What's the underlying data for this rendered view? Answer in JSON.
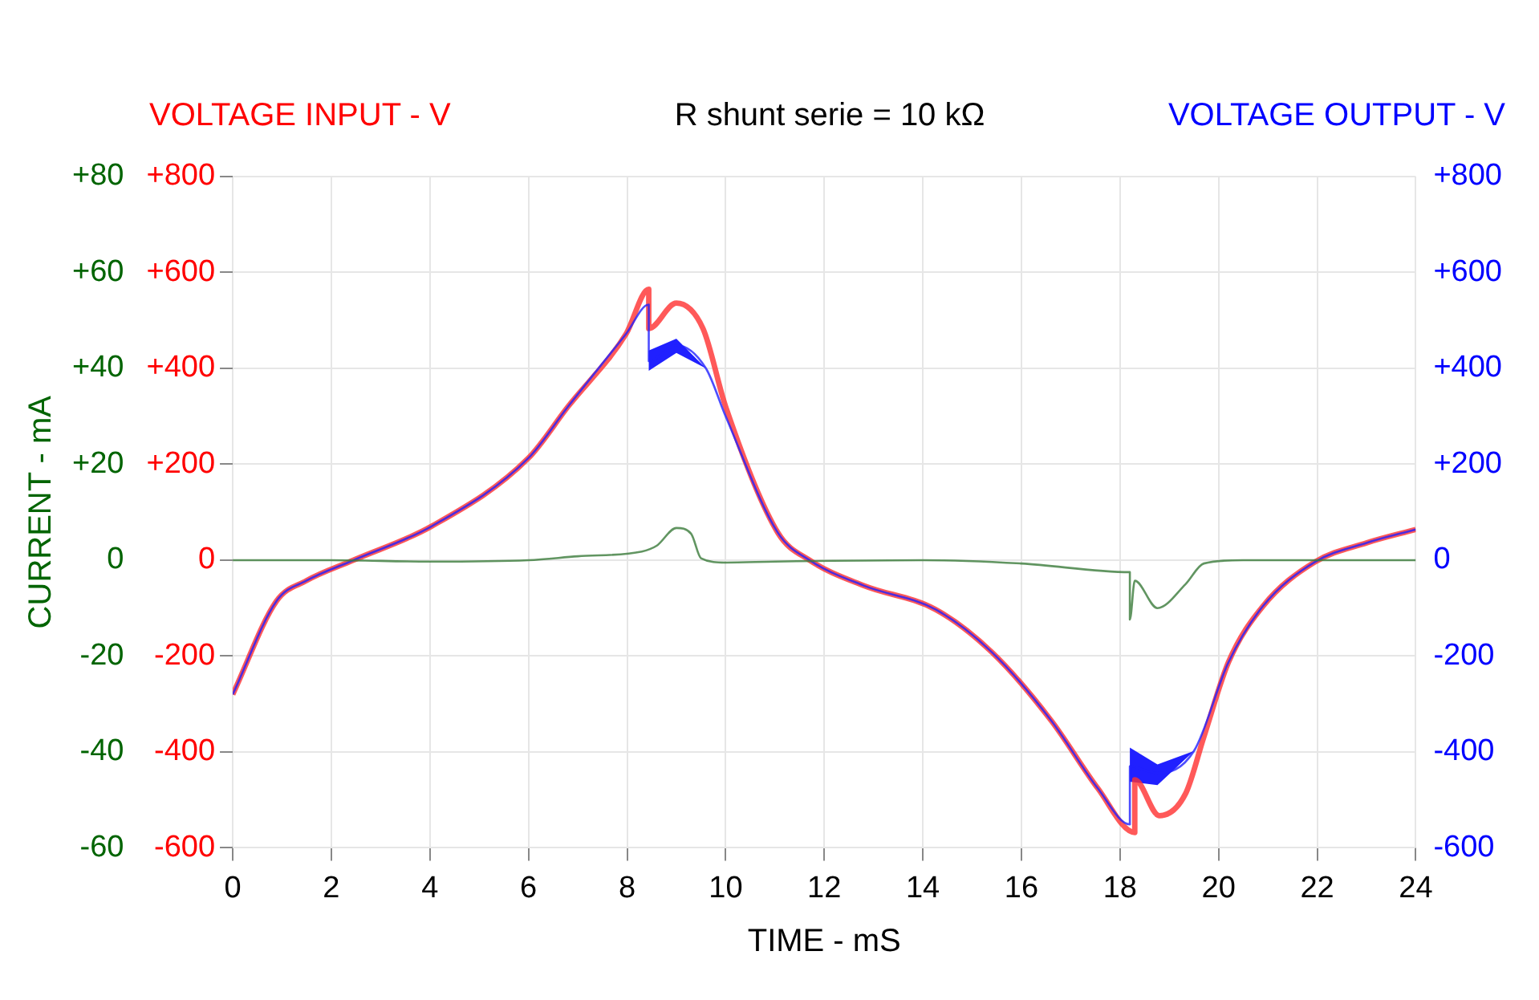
{
  "chart_data": {
    "type": "line",
    "title": "R shunt serie = 10 kΩ",
    "xlabel": "TIME - mS",
    "ylabel": "VOLTAGE INPUT - V",
    "y2label": "VOLTAGE OUTPUT - V",
    "y3label": "CURRENT - mA",
    "xlim": [
      0,
      24
    ],
    "xticks": [
      0,
      2,
      4,
      6,
      8,
      10,
      12,
      14,
      16,
      18,
      20,
      22,
      24
    ],
    "ylim": [
      -600,
      800
    ],
    "yticks": [
      {
        "value": 800,
        "label": "+800"
      },
      {
        "value": 600,
        "label": "+600"
      },
      {
        "value": 400,
        "label": "+400"
      },
      {
        "value": 200,
        "label": "+200"
      },
      0,
      -200,
      -400,
      -600
    ],
    "y2lim": [
      -600,
      800
    ],
    "y2ticks": [
      {
        "value": 800,
        "label": "+800"
      },
      {
        "value": 600,
        "label": "+600"
      },
      {
        "value": 400,
        "label": "+400"
      },
      {
        "value": 200,
        "label": "+200"
      },
      0,
      -200,
      -400,
      -600
    ],
    "y3lim": [
      -60,
      80
    ],
    "y3ticks": [
      {
        "value": 80,
        "label": "+80"
      },
      {
        "value": 60,
        "label": "+60"
      },
      {
        "value": 40,
        "label": "+40"
      },
      {
        "value": 20,
        "label": "+20"
      },
      0,
      -20,
      -40,
      -60
    ],
    "grid": true,
    "legend": false,
    "marker": "none",
    "line_style": "solid",
    "series": [
      {
        "color": "#ff3030",
        "axis": "y",
        "x": [
          0,
          0.89,
          1.49,
          2.45,
          4.04,
          6,
          6.8,
          7.98,
          8.44,
          8.44,
          9.0,
          9.54,
          10,
          11.06,
          11.7,
          12.8,
          14.26,
          15.4,
          16.6,
          17.55,
          18.3,
          18.3,
          18.8,
          19.33,
          19.7,
          20.2,
          20.9,
          21.95,
          23,
          24
        ],
        "values": [
          -280,
          -85,
          -43,
          0,
          71,
          213,
          320,
          472,
          565,
          483,
          536,
          483,
          320,
          57,
          0,
          -53,
          -103,
          -192,
          -334,
          -476,
          -568,
          -458,
          -533,
          -487,
          -369,
          -213,
          -96,
          -4,
          36,
          64
        ]
      },
      {
        "color": "#2020ff",
        "axis": "y2",
        "x": [
          0,
          0.89,
          1.49,
          2.45,
          4.04,
          6,
          6.8,
          7.98,
          8.44,
          8.44,
          9.0,
          9.6,
          10,
          11.06,
          11.7,
          12.8,
          14.26,
          15.4,
          16.6,
          17.55,
          18.2,
          18.2,
          18.76,
          19.5,
          20.2,
          20.9,
          21.95,
          23,
          24
        ],
        "values": [
          -280,
          -85,
          -43,
          0,
          71,
          213,
          320,
          472,
          533,
          415,
          448,
          400,
          300,
          57,
          0,
          -53,
          -103,
          -192,
          -334,
          -476,
          -551,
          -430,
          -444,
          -398,
          -213,
          -96,
          -4,
          36,
          64
        ],
        "lower": [
          null,
          null,
          null,
          null,
          null,
          null,
          null,
          null,
          null,
          395,
          432,
          400,
          null,
          null,
          null,
          null,
          null,
          null,
          null,
          null,
          null,
          -462,
          -469,
          -398,
          null,
          null,
          null,
          null,
          null
        ],
        "upper": [
          null,
          null,
          null,
          null,
          null,
          null,
          null,
          null,
          null,
          437,
          462,
          400,
          null,
          null,
          null,
          null,
          null,
          null,
          null,
          null,
          null,
          -391,
          -426,
          -398,
          null,
          null,
          null,
          null,
          null
        ]
      },
      {
        "color": "#3a7a3a",
        "axis": "y3",
        "x": [
          0,
          2,
          4,
          6,
          7,
          8.3,
          8.6,
          9.0,
          9.3,
          9.5,
          10,
          11,
          14,
          16,
          18.2,
          18.2,
          18.3,
          18.76,
          19.33,
          19.7,
          20.5,
          24
        ],
        "values": [
          0,
          0,
          -0.3,
          0,
          0.8,
          1.8,
          3,
          6.7,
          5.5,
          0.4,
          -0.5,
          -0.3,
          0,
          -0.7,
          -2.5,
          -12.4,
          -4.3,
          -10,
          -5,
          -0.7,
          0,
          0
        ]
      }
    ]
  }
}
